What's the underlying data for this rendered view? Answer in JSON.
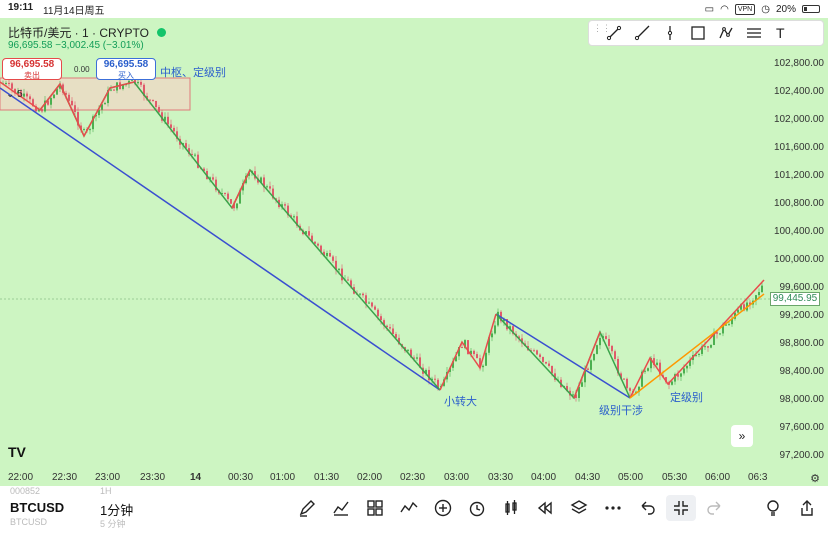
{
  "status_bar": {
    "time": "19:11",
    "date": "11月14日周五",
    "vpn": "VPN",
    "battery": "20%"
  },
  "chart": {
    "symbol_title": "比特币/美元 · 1 · CRYPTO",
    "price_change": "96,695.58 −3,002.45 (−3.01%)",
    "sell_price": "96,695.58",
    "sell_label": "卖出",
    "buy_price": "96,695.58",
    "buy_label": "买入",
    "spread": "0.00",
    "top_note": "中枢、定级别",
    "collapse_count": "5",
    "current_price": "99,445.95",
    "price_levels": [
      "102,800.00",
      "102,400.00",
      "102,000.00",
      "101,600.00",
      "101,200.00",
      "100,800.00",
      "100,400.00",
      "100,000.00",
      "99,600.00",
      "99,200.00",
      "98,800.00",
      "98,400.00",
      "98,000.00",
      "97,600.00",
      "97,200.00"
    ],
    "time_labels": [
      "22:00",
      "22:30",
      "23:00",
      "23:30",
      "14",
      "00:30",
      "01:00",
      "01:30",
      "02:00",
      "02:30",
      "03:00",
      "03:30",
      "04:00",
      "04:30",
      "05:00",
      "05:30",
      "06:00",
      "06:3"
    ],
    "annotations": {
      "small_to_big": "小转大",
      "level_interference": "级别干涉",
      "fix_level": "定级别"
    },
    "colors": {
      "background": "#cdf5c2",
      "up_candle": "#4caf50",
      "down_candle": "#e05a6a",
      "green_line": "#3aa34a",
      "red_line": "#e84c4c",
      "blue_line": "#3a4fd0",
      "orange_line": "#ff9800",
      "zone": "#f2d6c4"
    }
  },
  "draw_toolbar": {
    "tools": [
      "trend-line-icon",
      "ray-icon",
      "vertical-line-icon",
      "rectangle-icon",
      "path-icon",
      "horizontal-lines-icon",
      "text-icon"
    ]
  },
  "bottom_bar": {
    "ghost_a": "000852",
    "ghost_b": "1H",
    "ghost_c": "BTCUSD",
    "ghost_d": "5 分钟",
    "symbol": "BTCUSD",
    "interval": "1分钟"
  },
  "logo": "TV"
}
